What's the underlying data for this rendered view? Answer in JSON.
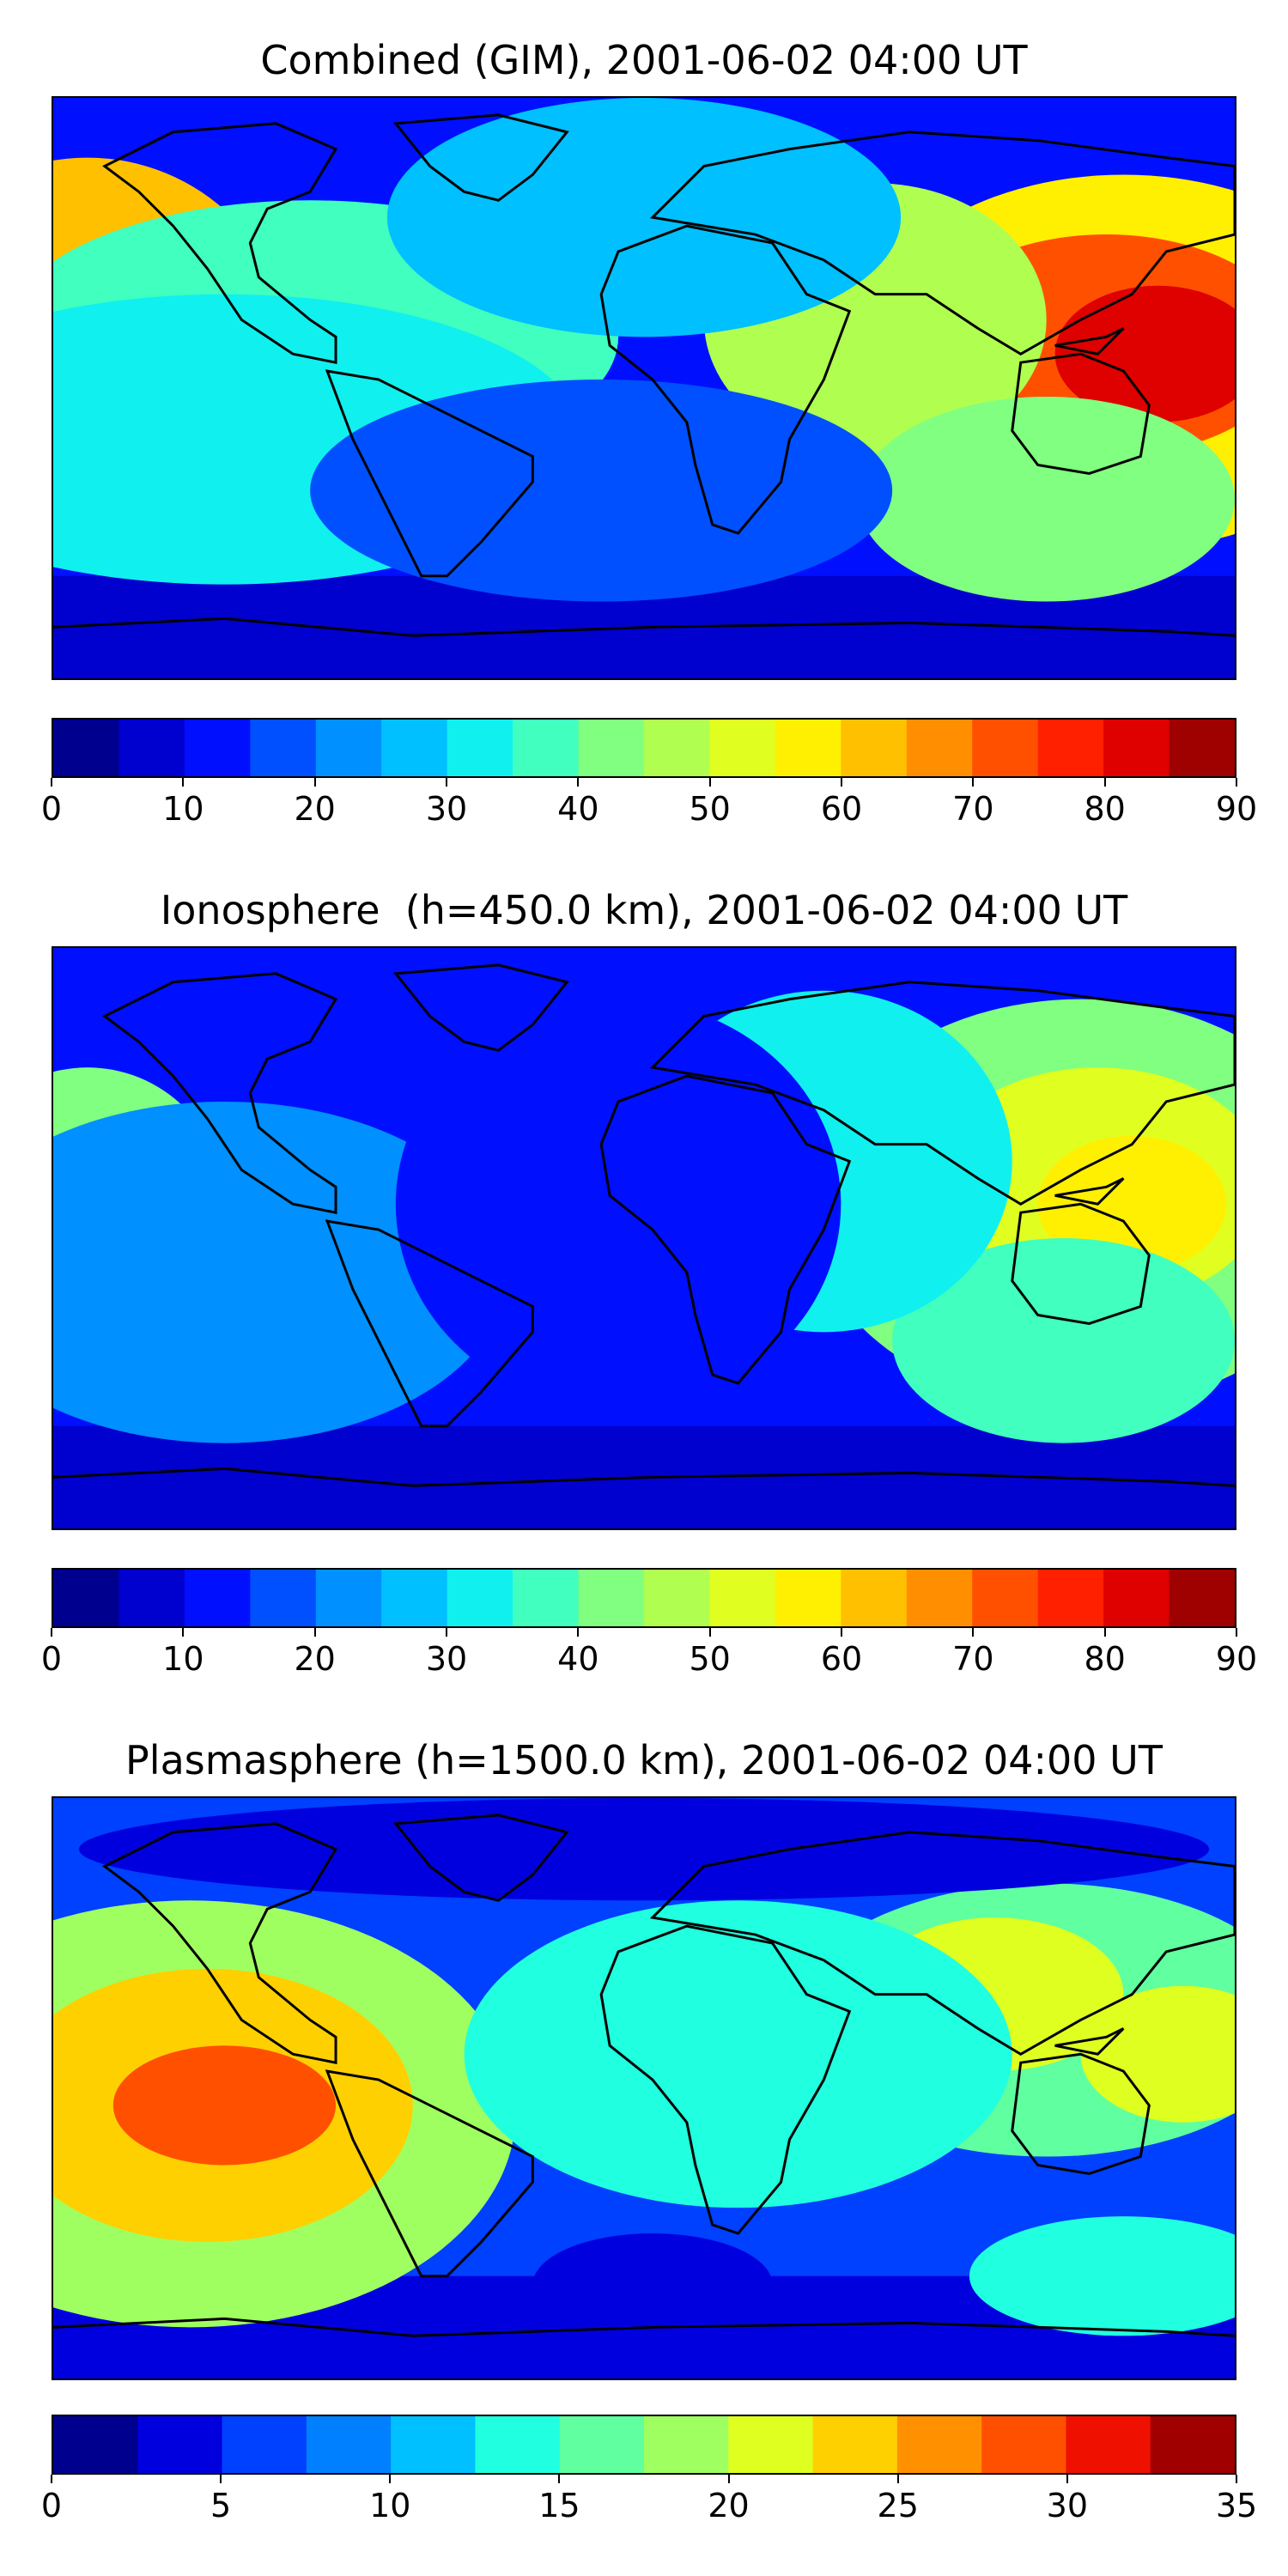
{
  "panels": [
    {
      "title": "Combined (GIM), 2001-06-02 04:00 UT",
      "colorbar": {
        "min": 0,
        "max": 90,
        "step": 5,
        "tick_labels": [
          "0",
          "10",
          "20",
          "30",
          "40",
          "50",
          "60",
          "70",
          "80",
          "90"
        ],
        "colors": [
          "#00008f",
          "#0000cf",
          "#0010ff",
          "#0050ff",
          "#0090ff",
          "#00c0ff",
          "#10f0ef",
          "#40ffbf",
          "#80ff80",
          "#b0ff50",
          "#e0ff20",
          "#ffef00",
          "#ffc000",
          "#ff8f00",
          "#ff5000",
          "#ff2000",
          "#df0000",
          "#9f0000"
        ]
      }
    },
    {
      "title": "Ionosphere  (h=450.0 km), 2001-06-02 04:00 UT",
      "colorbar": {
        "min": 0,
        "max": 90,
        "step": 5,
        "tick_labels": [
          "0",
          "10",
          "20",
          "30",
          "40",
          "50",
          "60",
          "70",
          "80",
          "90"
        ],
        "colors": [
          "#00008f",
          "#0000cf",
          "#0010ff",
          "#0050ff",
          "#0090ff",
          "#00c0ff",
          "#10f0ef",
          "#40ffbf",
          "#80ff80",
          "#b0ff50",
          "#e0ff20",
          "#ffef00",
          "#ffc000",
          "#ff8f00",
          "#ff5000",
          "#ff2000",
          "#df0000",
          "#9f0000"
        ]
      }
    },
    {
      "title": "Plasmasphere (h=1500.0 km), 2001-06-02 04:00 UT",
      "colorbar": {
        "min": 0,
        "max": 35,
        "step": 2.5,
        "tick_labels": [
          "0",
          "5",
          "10",
          "15",
          "20",
          "25",
          "30",
          "35"
        ],
        "colors": [
          "#00008f",
          "#0000df",
          "#0040ff",
          "#0080ff",
          "#00c0ff",
          "#20ffdf",
          "#60ff9f",
          "#a0ff60",
          "#dfff20",
          "#ffd000",
          "#ff9000",
          "#ff5000",
          "#ef1000",
          "#a00000"
        ]
      }
    }
  ],
  "colors": {
    "background_low": "#0000cf",
    "coastline": "#000000"
  }
}
